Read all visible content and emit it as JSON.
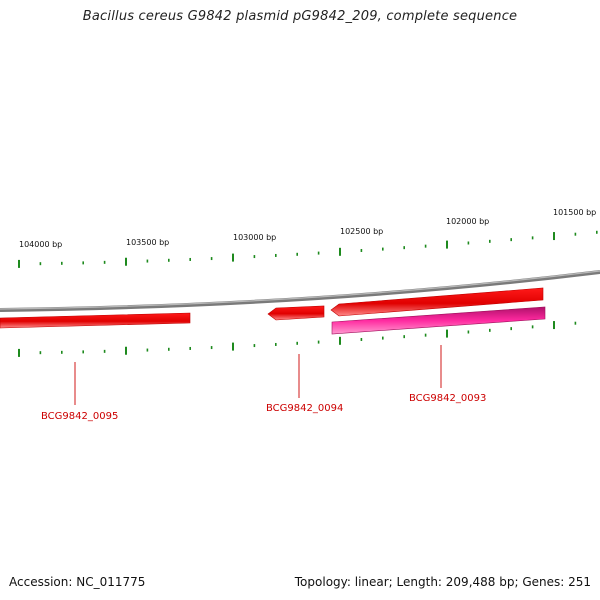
{
  "title": "Bacillus cereus G9842 plasmid pG9842_209, complete sequence",
  "footer": {
    "accession": "Accession: NC_011775",
    "summary": "Topology: linear; Length: 209,488 bp; Genes: 251"
  },
  "colors": {
    "backbone": "#8a8a8a",
    "tick": "#1e8a1e",
    "gene_red": "#ff0000",
    "gene_pink": "#ff2aa0",
    "label_red": "#cc0000"
  },
  "scale_labels": [
    "104000 bp",
    "103500 bp",
    "103000 bp",
    "102500 bp",
    "102000 bp",
    "101500 bp"
  ],
  "genes": [
    {
      "label": "BCG9842_0095",
      "strand": "minus",
      "color": "red"
    },
    {
      "label": "BCG9842_0094",
      "strand": "minus",
      "color": "red"
    },
    {
      "label": "BCG9842_0093",
      "strand": "minus",
      "color": "pink"
    }
  ]
}
